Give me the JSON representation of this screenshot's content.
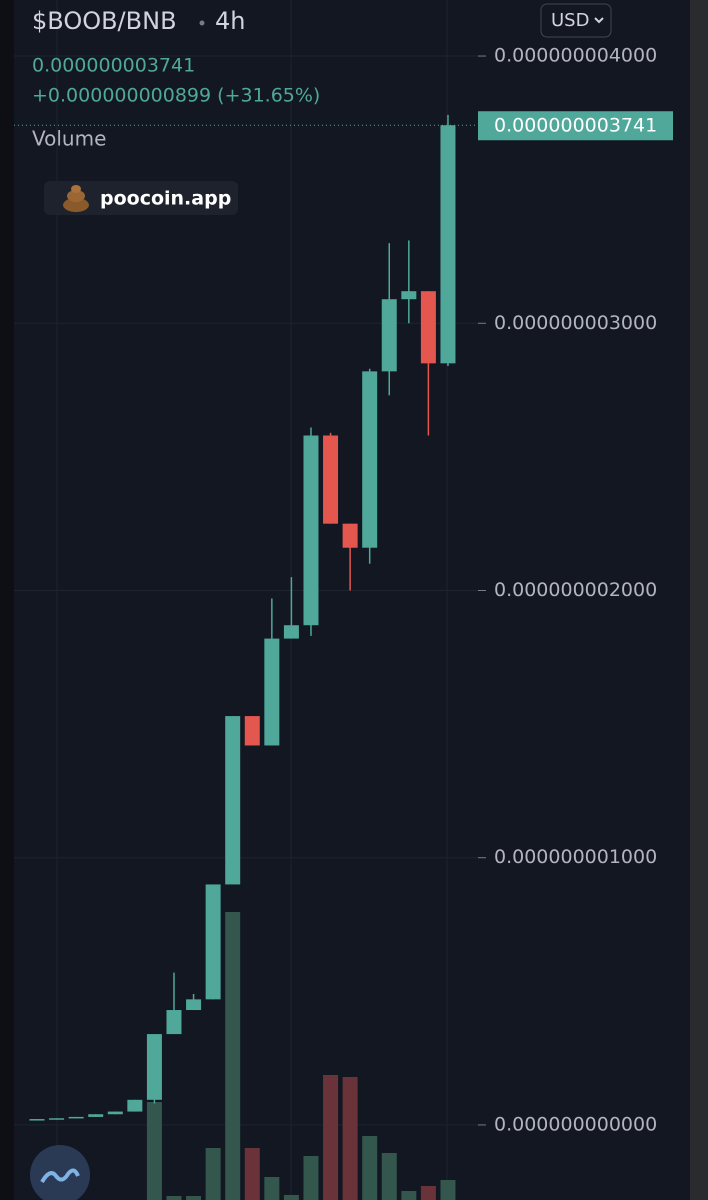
{
  "chart_data": {
    "type": "candlestick",
    "title": "$BOOB/BNB",
    "interval": "4h",
    "price": "0.000000003741",
    "change": "+0.000000000899 (+31.65%)",
    "volume_label": "Volume",
    "watermark": "poocoin.app",
    "currency": "USD",
    "up_color": "#4fa89a",
    "down_color": "#e3574f",
    "volume_up_color": "#33574d",
    "volume_down_color": "#6a333a",
    "ylim": [
      -2.809e-10,
      4.2097e-09
    ],
    "yticks": [
      {
        "value": 4e-09,
        "label": "0.000000004000"
      },
      {
        "value": 3e-09,
        "label": "0.000000003000"
      },
      {
        "value": 2e-09,
        "label": "0.000000002000"
      },
      {
        "value": 1e-09,
        "label": "0.000000001000"
      },
      {
        "value": 0,
        "label": "0.000000000000"
      }
    ],
    "last_value": 3.741e-09,
    "grid": true,
    "open": [
      2e-11,
      2.2e-11,
      2.5e-11,
      3e-11,
      4e-11,
      5e-11,
      9.4e-11,
      3.4e-10,
      4.3e-10,
      4.7e-10,
      9e-10,
      1.53e-09,
      1.42e-09,
      1.82e-09,
      1.87e-09,
      2.58e-09,
      2.25e-09,
      2.16e-09,
      2.82e-09,
      3.09e-09,
      3.12e-09,
      2.85e-09
    ],
    "high": [
      2.2e-11,
      2.5e-11,
      3e-11,
      4e-11,
      5e-11,
      9.4e-11,
      3.4e-10,
      5.7e-10,
      4.9e-10,
      9e-10,
      1.53e-09,
      1.53e-09,
      1.97e-09,
      2.05e-09,
      2.61e-09,
      2.59e-09,
      2.25e-09,
      2.83e-09,
      3.3e-09,
      3.31e-09,
      3.12e-09,
      3.78e-09
    ],
    "low": [
      2e-11,
      2.2e-11,
      2.5e-11,
      3e-11,
      4e-11,
      5e-11,
      8e-11,
      3.4e-10,
      4.3e-10,
      4.7e-10,
      9e-10,
      1.42e-09,
      1.42e-09,
      1.82e-09,
      1.83e-09,
      2.25e-09,
      2e-09,
      2.1e-09,
      2.73e-09,
      3e-09,
      2.58e-09,
      2.84e-09
    ],
    "close": [
      2.2e-11,
      2.5e-11,
      3e-11,
      4e-11,
      5e-11,
      9.4e-11,
      3.4e-10,
      4.3e-10,
      4.7e-10,
      9e-10,
      1.53e-09,
      1.42e-09,
      1.82e-09,
      1.87e-09,
      2.58e-09,
      2.25e-09,
      2.16e-09,
      2.82e-09,
      3.09e-09,
      3.12e-09,
      2.85e-09,
      3.741e-09
    ],
    "volume_lim": [
      0,
      1200
    ],
    "volume": [
      0,
      0,
      0,
      0,
      0,
      0,
      98,
      4,
      4,
      52,
      288,
      52,
      23,
      5,
      44,
      125,
      123,
      64,
      47,
      9,
      14,
      20
    ]
  }
}
